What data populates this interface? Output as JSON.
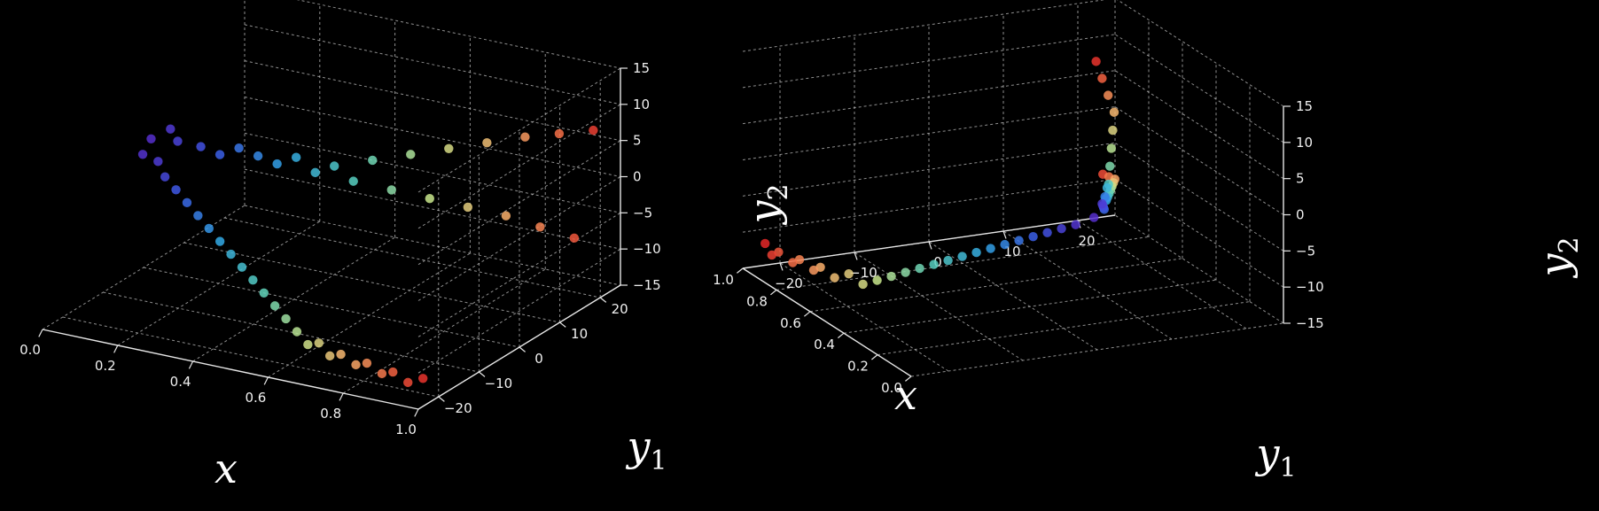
{
  "chart_data": [
    {
      "type": "scatter",
      "dims": 3,
      "axes": {
        "x": {
          "label": "x",
          "ticks": [
            "0.0",
            "0.2",
            "0.4",
            "0.6",
            "0.8",
            "1.0"
          ],
          "lim": [
            0,
            1
          ]
        },
        "y1": {
          "label": "y",
          "sub": "1",
          "ticks": [
            "−20",
            "−10",
            "0",
            "10",
            "20"
          ],
          "lim": [
            -25,
            25
          ]
        },
        "y2": {
          "label": "y",
          "sub": "2",
          "ticks": [
            "−15",
            "−10",
            "−5",
            "0",
            "5",
            "10",
            "15"
          ],
          "lim": [
            -15,
            15
          ]
        }
      },
      "grid": true,
      "colormap": "rainbow (purple to red along x)",
      "background": "#000000",
      "series": [
        {
          "points": [
            [
              0.02,
              0,
              3
            ],
            [
              0.03,
              -3,
              2
            ],
            [
              0.05,
              2,
              4
            ],
            [
              0.06,
              -2,
              1
            ],
            [
              0.08,
              1,
              3
            ],
            [
              0.1,
              -4,
              0
            ],
            [
              0.12,
              3,
              2
            ],
            [
              0.14,
              -5,
              -1
            ],
            [
              0.16,
              4,
              1
            ],
            [
              0.18,
              -6,
              -2
            ],
            [
              0.2,
              5,
              2
            ],
            [
              0.22,
              -7,
              -3
            ],
            [
              0.24,
              6,
              1
            ],
            [
              0.26,
              -8,
              -4
            ],
            [
              0.28,
              7,
              0
            ],
            [
              0.3,
              -9,
              -5
            ],
            [
              0.32,
              8,
              1
            ],
            [
              0.34,
              -10,
              -6
            ],
            [
              0.36,
              9,
              -1
            ],
            [
              0.38,
              -11,
              -7
            ],
            [
              0.4,
              10,
              0
            ],
            [
              0.42,
              -12,
              -8
            ],
            [
              0.44,
              11,
              -2
            ],
            [
              0.46,
              -13,
              -9
            ],
            [
              0.48,
              12,
              1
            ],
            [
              0.5,
              -14,
              -10
            ],
            [
              0.52,
              13,
              -3
            ],
            [
              0.54,
              -15,
              -11
            ],
            [
              0.56,
              14,
              2
            ],
            [
              0.58,
              -16,
              -12
            ],
            [
              0.6,
              15,
              -4
            ],
            [
              0.62,
              -17,
              -13
            ],
            [
              0.64,
              16,
              3
            ],
            [
              0.66,
              -18,
              -12
            ],
            [
              0.68,
              17,
              -5
            ],
            [
              0.7,
              -19,
              -13
            ],
            [
              0.72,
              18,
              4
            ],
            [
              0.74,
              -20,
              -12
            ],
            [
              0.76,
              19,
              -6
            ],
            [
              0.78,
              -20,
              -13
            ],
            [
              0.8,
              20,
              5
            ],
            [
              0.82,
              -21,
              -12
            ],
            [
              0.84,
              20,
              -7
            ],
            [
              0.86,
              -21,
              -13
            ],
            [
              0.88,
              21,
              6
            ],
            [
              0.9,
              -22,
              -12
            ],
            [
              0.92,
              21,
              -8
            ],
            [
              0.94,
              -22,
              -13
            ],
            [
              0.96,
              22,
              7
            ],
            [
              0.98,
              -22,
              -12
            ]
          ]
        }
      ]
    },
    {
      "type": "scatter",
      "dims": 3,
      "axes": {
        "x": {
          "label": "x",
          "ticks": [
            "0.0",
            "0.2",
            "0.4",
            "0.6",
            "0.8",
            "1.0"
          ],
          "lim": [
            0,
            1
          ]
        },
        "y1": {
          "label": "y",
          "sub": "1",
          "ticks": [
            "−20",
            "−10",
            "0",
            "10",
            "20"
          ],
          "lim": [
            -25,
            25
          ]
        },
        "y2": {
          "label": "y",
          "sub": "2",
          "ticks": [
            "−15",
            "−10",
            "−5",
            "0",
            "5",
            "10",
            "15"
          ],
          "lim": [
            -15,
            15
          ]
        }
      },
      "grid": true,
      "colormap": "rainbow (purple to red along x)",
      "background": "#000000",
      "series": [
        {
          "points": [
            [
              0.02,
              0,
              3
            ],
            [
              0.04,
              -2,
              2
            ],
            [
              0.06,
              2,
              4
            ],
            [
              0.08,
              -3,
              1
            ],
            [
              0.1,
              3,
              3
            ],
            [
              0.12,
              -4,
              0
            ],
            [
              0.14,
              4,
              2
            ],
            [
              0.16,
              -5,
              -1
            ],
            [
              0.18,
              5,
              1
            ],
            [
              0.2,
              -6,
              -2
            ],
            [
              0.22,
              6,
              2
            ],
            [
              0.24,
              -7,
              -3
            ],
            [
              0.26,
              7,
              1
            ],
            [
              0.28,
              -8,
              -4
            ],
            [
              0.3,
              8,
              0
            ],
            [
              0.32,
              -9,
              -5
            ],
            [
              0.34,
              9,
              1
            ],
            [
              0.36,
              -10,
              -6
            ],
            [
              0.38,
              10,
              -1
            ],
            [
              0.4,
              -11,
              -7
            ],
            [
              0.42,
              11,
              0
            ],
            [
              0.44,
              -12,
              -8
            ],
            [
              0.46,
              12,
              -2
            ],
            [
              0.48,
              -13,
              -9
            ],
            [
              0.5,
              13,
              1
            ],
            [
              0.52,
              -14,
              -10
            ],
            [
              0.54,
              14,
              -3
            ],
            [
              0.56,
              -15,
              -11
            ],
            [
              0.58,
              15,
              2
            ],
            [
              0.6,
              -16,
              -12
            ],
            [
              0.62,
              16,
              -4
            ],
            [
              0.64,
              -17,
              -13
            ],
            [
              0.66,
              17,
              3
            ],
            [
              0.68,
              -18,
              -12
            ],
            [
              0.7,
              18,
              -5
            ],
            [
              0.72,
              -19,
              -13
            ],
            [
              0.74,
              19,
              4
            ],
            [
              0.76,
              -20,
              -12
            ],
            [
              0.78,
              20,
              -6
            ],
            [
              0.8,
              -20,
              -13
            ],
            [
              0.82,
              20,
              5
            ],
            [
              0.84,
              -21,
              -12
            ],
            [
              0.86,
              21,
              -7
            ],
            [
              0.88,
              -21,
              -13
            ],
            [
              0.9,
              21,
              6
            ],
            [
              0.92,
              -22,
              -12
            ],
            [
              0.94,
              22,
              -8
            ],
            [
              0.96,
              -22,
              -13
            ],
            [
              0.98,
              22,
              7
            ],
            [
              1.0,
              -22,
              -12
            ]
          ]
        }
      ]
    }
  ]
}
